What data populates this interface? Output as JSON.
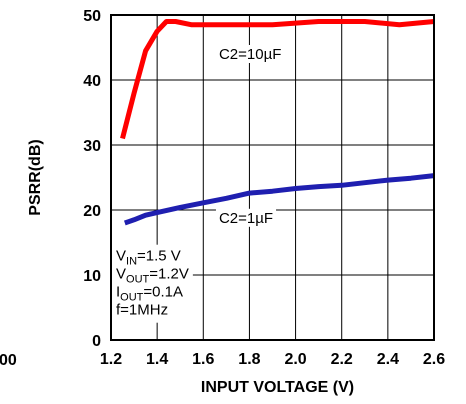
{
  "chart_data": {
    "type": "line",
    "xlabel": "INPUT VOLTAGE (V)",
    "ylabel": "PSRR(dB)",
    "xlim": [
      1.2,
      2.6
    ],
    "ylim": [
      0,
      50
    ],
    "xticks": [
      "1.2",
      "1.4",
      "1.6",
      "1.8",
      "2.0",
      "2.2",
      "2.4",
      "2.6"
    ],
    "yticks": [
      "0",
      "10",
      "20",
      "30",
      "40",
      "50"
    ],
    "grid": true,
    "left_edge_label": "00",
    "series": [
      {
        "name": "C2=10µF",
        "color": "#ff0000",
        "x": [
          1.25,
          1.3,
          1.35,
          1.4,
          1.44,
          1.48,
          1.55,
          1.7,
          1.9,
          2.1,
          2.3,
          2.45,
          2.6
        ],
        "y": [
          31,
          38,
          44.5,
          47.5,
          49,
          49,
          48.5,
          48.5,
          48.5,
          49,
          49,
          48.5,
          49
        ]
      },
      {
        "name": "C2=1µF",
        "color": "#1f1fb0",
        "x": [
          1.26,
          1.3,
          1.35,
          1.4,
          1.5,
          1.6,
          1.7,
          1.8,
          1.9,
          2.0,
          2.1,
          2.2,
          2.3,
          2.4,
          2.5,
          2.6
        ],
        "y": [
          18,
          18.5,
          19.2,
          19.6,
          20.4,
          21.1,
          21.8,
          22.6,
          22.9,
          23.3,
          23.6,
          23.8,
          24.2,
          24.6,
          24.9,
          25.3
        ]
      }
    ],
    "conditions": [
      {
        "main": "V",
        "sub": "IN",
        "rest": "=1.5 V"
      },
      {
        "main": "V",
        "sub": "OUT",
        "rest": "=1.2V"
      },
      {
        "main": "I",
        "sub": "OUT",
        "rest": "=0.1A"
      },
      {
        "main": "f=1MHz",
        "sub": "",
        "rest": ""
      }
    ]
  }
}
